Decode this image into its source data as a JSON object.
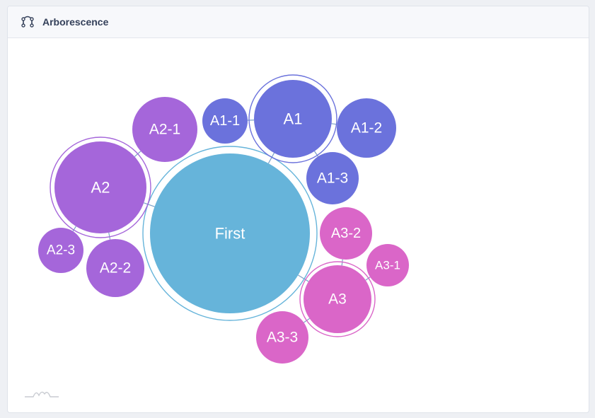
{
  "header": {
    "title": "Arborescence",
    "icon": "tree-network-icon"
  },
  "diagram": {
    "type": "hierarchical-bubble",
    "colors": {
      "root": "#66b4da",
      "branch_A1": "#6b72dc",
      "branch_A2": "#a566da",
      "branch_A3": "#da66c8",
      "link": "#7aa0c8"
    },
    "root": {
      "label": "First"
    },
    "groups": [
      {
        "label": "A1",
        "children": [
          "A1-1",
          "A1-2",
          "A1-3"
        ]
      },
      {
        "label": "A2",
        "children": [
          "A2-1",
          "A2-2",
          "A2-3"
        ]
      },
      {
        "label": "A3",
        "children": [
          "A3-1",
          "A3-2",
          "A3-3"
        ]
      }
    ]
  },
  "footer": {
    "icon": "chart-watermark-icon"
  }
}
